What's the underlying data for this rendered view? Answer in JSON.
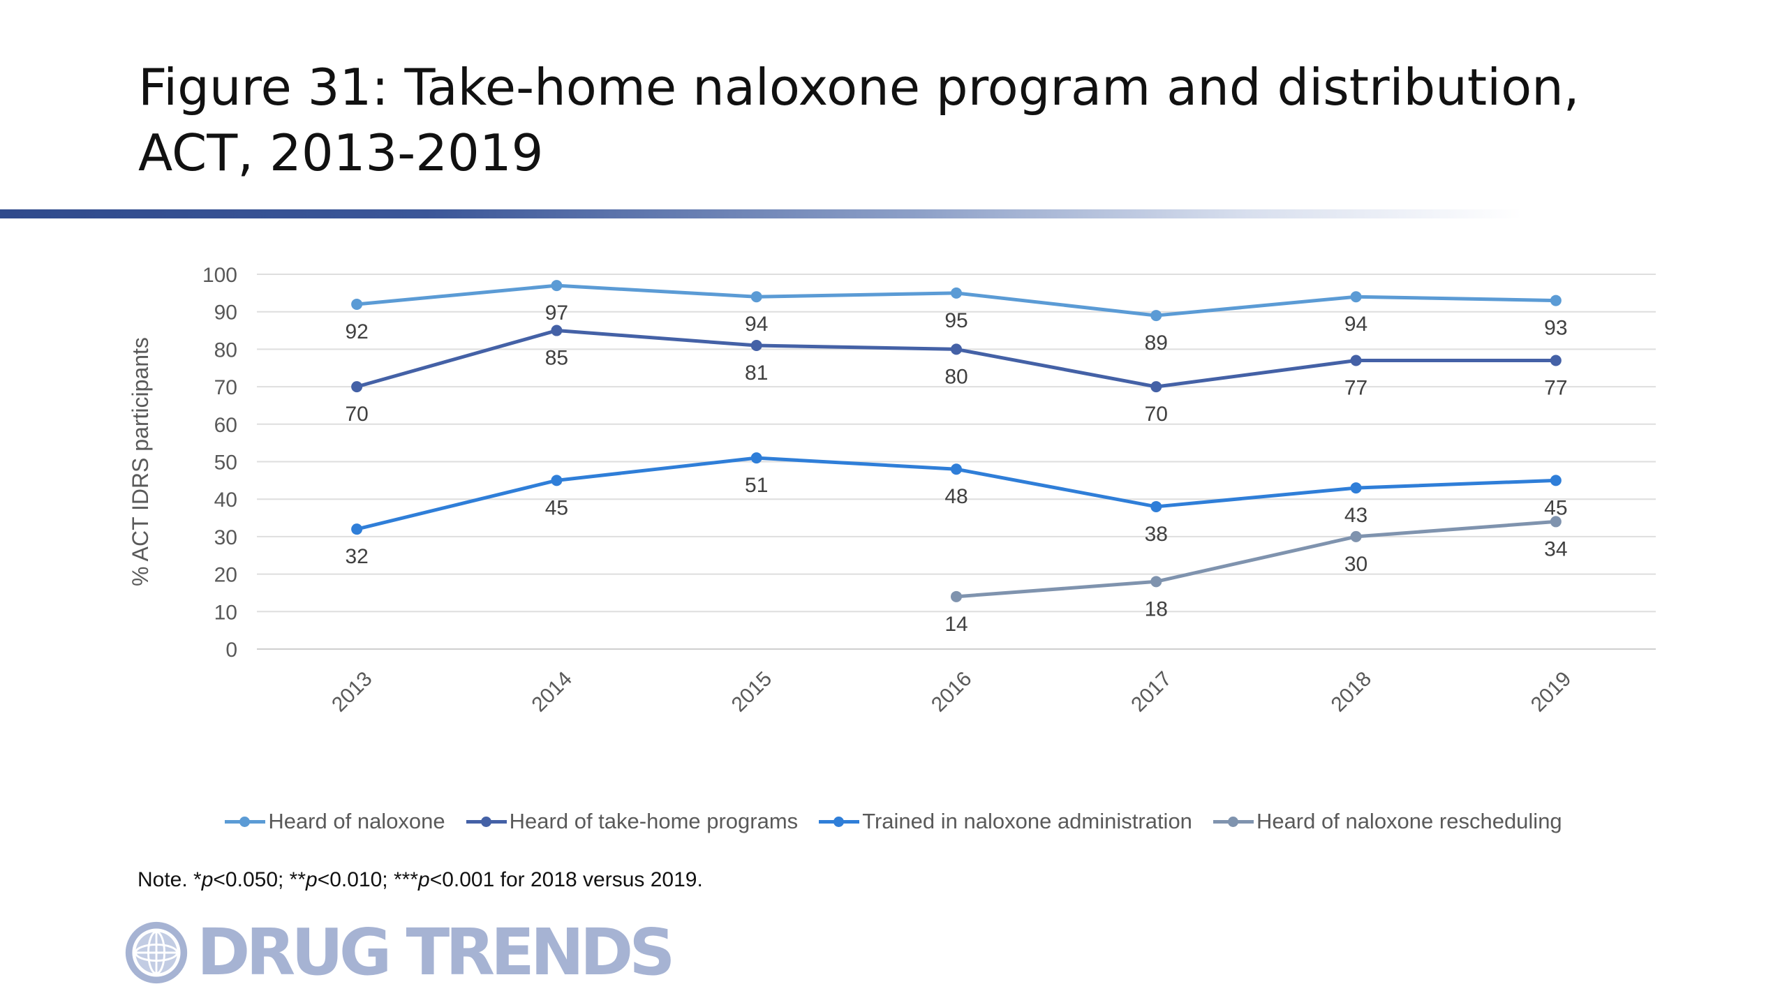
{
  "title": "Figure 31: Take-home naloxone program and distribution, ACT, 2013-2019",
  "note": {
    "prefix": "Note. *",
    "p1": "p",
    "t1": "<0.050; **",
    "p2": "p",
    "t2": "<0.010; ***",
    "p3": "p",
    "t3": "<0.001 for 2018 versus 2019."
  },
  "logo": {
    "text": "DRUG TRENDS",
    "icon": "globe-icon",
    "color": "#a6b3d3"
  },
  "chart_data": {
    "type": "line",
    "title": "",
    "xlabel": "",
    "ylabel": "% ACT IDRS participants",
    "categories": [
      "2013",
      "2014",
      "2015",
      "2016",
      "2017",
      "2018",
      "2019"
    ],
    "ylim": [
      0,
      100
    ],
    "yticks": [
      0,
      10,
      20,
      30,
      40,
      50,
      60,
      70,
      80,
      90,
      100
    ],
    "grid": true,
    "legend_position": "bottom",
    "data_labels": true,
    "series": [
      {
        "name": "Heard of naloxone",
        "color": "#5b9bd5",
        "values": [
          92,
          97,
          94,
          95,
          89,
          94,
          93
        ],
        "label_position": "below"
      },
      {
        "name": "Heard of take-home programs",
        "color": "#4461a6",
        "values": [
          70,
          85,
          81,
          80,
          70,
          77,
          77
        ],
        "label_position": "below"
      },
      {
        "name": "Trained in naloxone administration",
        "color": "#2f7ed8",
        "values": [
          32,
          45,
          51,
          48,
          38,
          43,
          45
        ],
        "label_position": "below"
      },
      {
        "name": "Heard of naloxone rescheduling",
        "color": "#7f93ae",
        "values": [
          null,
          null,
          null,
          14,
          18,
          30,
          34
        ],
        "label_position": "below"
      }
    ]
  }
}
